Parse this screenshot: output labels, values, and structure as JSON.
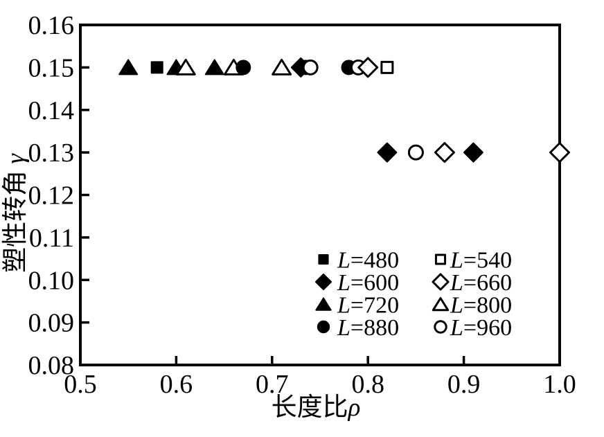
{
  "figure": {
    "background": "#ffffff",
    "title": ""
  },
  "chart_data": {
    "type": "scatter",
    "title": "",
    "xlabel": "长度比ρ",
    "ylabel": "塑性转角 γ",
    "xlim": [
      0.5,
      1.0
    ],
    "ylim": [
      0.08,
      0.16
    ],
    "grid": false,
    "color": "#000000",
    "xticks": {
      "values": [
        0.5,
        0.6,
        0.7,
        0.8,
        0.9,
        1.0
      ],
      "labels": [
        "0.5",
        "0.6",
        "0.7",
        "0.8",
        "0.9",
        "1.0"
      ]
    },
    "yticks": {
      "values": [
        0.08,
        0.09,
        0.1,
        0.11,
        0.12,
        0.13,
        0.14,
        0.15,
        0.16
      ],
      "labels": [
        "0.08",
        "0.09",
        "0.10",
        "0.11",
        "0.12",
        "0.13",
        "0.14",
        "0.15",
        "0.16"
      ]
    },
    "series": [
      {
        "name": "L=480",
        "marker": "square",
        "filled": true,
        "points": [
          [
            0.58,
            0.15
          ]
        ]
      },
      {
        "name": "L=720",
        "marker": "triangle",
        "filled": true,
        "points": [
          [
            0.55,
            0.15
          ],
          [
            0.6,
            0.15
          ],
          [
            0.64,
            0.15
          ]
        ]
      },
      {
        "name": "L=800",
        "marker": "triangle",
        "filled": false,
        "points": [
          [
            0.61,
            0.15
          ],
          [
            0.66,
            0.15
          ],
          [
            0.71,
            0.15
          ]
        ]
      },
      {
        "name": "L=880",
        "marker": "circle",
        "filled": true,
        "points": [
          [
            0.67,
            0.15
          ],
          [
            0.735,
            0.15
          ],
          [
            0.78,
            0.15
          ]
        ]
      },
      {
        "name": "L=600",
        "marker": "diamond",
        "filled": true,
        "points": [
          [
            0.73,
            0.15
          ],
          [
            0.82,
            0.13
          ],
          [
            0.91,
            0.13
          ]
        ]
      },
      {
        "name": "L=960",
        "marker": "circle",
        "filled": false,
        "points": [
          [
            0.74,
            0.15
          ],
          [
            0.79,
            0.15
          ],
          [
            0.85,
            0.13
          ]
        ]
      },
      {
        "name": "L=660",
        "marker": "diamond",
        "filled": false,
        "points": [
          [
            0.8,
            0.15
          ],
          [
            0.88,
            0.13
          ],
          [
            1.0,
            0.13
          ]
        ]
      },
      {
        "name": "L=540",
        "marker": "square",
        "filled": false,
        "points": [
          [
            0.82,
            0.15
          ]
        ]
      }
    ],
    "legend": {
      "position": "inside-bottom-right",
      "columns": [
        [
          "L=480",
          "L=600",
          "L=720",
          "L=880"
        ],
        [
          "L=540",
          "L=660",
          "L=800",
          "L=960"
        ]
      ]
    }
  }
}
